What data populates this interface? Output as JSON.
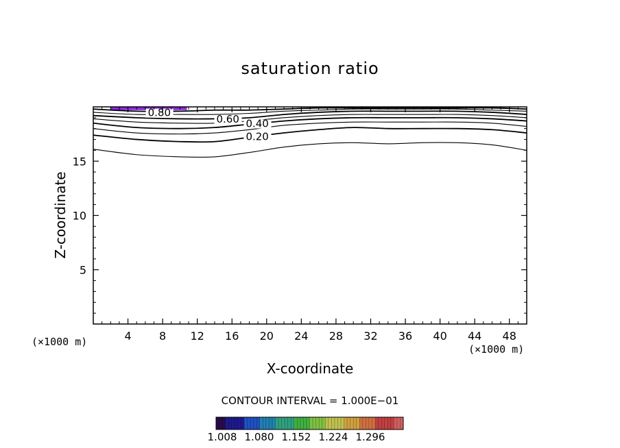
{
  "chart_data": {
    "type": "contour",
    "title": "saturation ratio",
    "xlabel": "X-coordinate",
    "ylabel": "Z-coordinate",
    "x_unit_left": "(×1000 m)",
    "x_unit_right": "(×1000 m)",
    "xlim": [
      0,
      50
    ],
    "ylim": [
      0,
      20
    ],
    "x_ticks": [
      "4",
      "8",
      "12",
      "16",
      "20",
      "24",
      "28",
      "32",
      "36",
      "40",
      "44",
      "48"
    ],
    "x_tick_values": [
      4,
      8,
      12,
      16,
      20,
      24,
      28,
      32,
      36,
      40,
      44,
      48
    ],
    "y_ticks": [
      "5",
      "10",
      "15"
    ],
    "y_tick_values": [
      5,
      10,
      15
    ],
    "contour_interval_text": "CONTOUR INTERVAL = 1.000E−01",
    "contours": [
      {
        "level": 0.1,
        "label": "",
        "points": [
          [
            0,
            16.1
          ],
          [
            5,
            15.6
          ],
          [
            10,
            15.4
          ],
          [
            14,
            15.4
          ],
          [
            18,
            15.8
          ],
          [
            22,
            16.3
          ],
          [
            26,
            16.6
          ],
          [
            30,
            16.7
          ],
          [
            34,
            16.6
          ],
          [
            38,
            16.7
          ],
          [
            42,
            16.7
          ],
          [
            46,
            16.5
          ],
          [
            50,
            16.0
          ]
        ]
      },
      {
        "level": 0.2,
        "label": "0.20",
        "points": [
          [
            0,
            17.4
          ],
          [
            5,
            17.0
          ],
          [
            10,
            16.8
          ],
          [
            14,
            16.8
          ],
          [
            18,
            17.2
          ],
          [
            22,
            17.6
          ],
          [
            26,
            17.9
          ],
          [
            30,
            18.1
          ],
          [
            34,
            18.0
          ],
          [
            38,
            18.0
          ],
          [
            42,
            18.0
          ],
          [
            46,
            17.9
          ],
          [
            50,
            17.6
          ]
        ]
      },
      {
        "level": 0.3,
        "label": "",
        "points": [
          [
            0,
            18.0
          ],
          [
            5,
            17.6
          ],
          [
            10,
            17.5
          ],
          [
            14,
            17.6
          ],
          [
            18,
            17.9
          ],
          [
            22,
            18.3
          ],
          [
            26,
            18.5
          ],
          [
            30,
            18.6
          ],
          [
            34,
            18.6
          ],
          [
            38,
            18.6
          ],
          [
            42,
            18.6
          ],
          [
            46,
            18.5
          ],
          [
            50,
            18.2
          ]
        ]
      },
      {
        "level": 0.4,
        "label": "0.40",
        "points": [
          [
            0,
            18.5
          ],
          [
            5,
            18.1
          ],
          [
            10,
            18.0
          ],
          [
            14,
            18.1
          ],
          [
            18,
            18.4
          ],
          [
            22,
            18.7
          ],
          [
            26,
            18.9
          ],
          [
            30,
            19.0
          ],
          [
            34,
            19.0
          ],
          [
            38,
            19.0
          ],
          [
            42,
            19.0
          ],
          [
            46,
            18.9
          ],
          [
            50,
            18.7
          ]
        ]
      },
      {
        "level": 0.5,
        "label": "",
        "points": [
          [
            0,
            18.9
          ],
          [
            5,
            18.6
          ],
          [
            10,
            18.5
          ],
          [
            14,
            18.5
          ],
          [
            18,
            18.7
          ],
          [
            22,
            19.0
          ],
          [
            26,
            19.2
          ],
          [
            30,
            19.3
          ],
          [
            34,
            19.3
          ],
          [
            38,
            19.3
          ],
          [
            42,
            19.3
          ],
          [
            46,
            19.2
          ],
          [
            50,
            19.0
          ]
        ]
      },
      {
        "level": 0.6,
        "label": "0.60",
        "points": [
          [
            0,
            19.2
          ],
          [
            5,
            19.0
          ],
          [
            10,
            18.9
          ],
          [
            14,
            18.9
          ],
          [
            18,
            19.0
          ],
          [
            22,
            19.3
          ],
          [
            26,
            19.5
          ],
          [
            30,
            19.6
          ],
          [
            34,
            19.6
          ],
          [
            38,
            19.6
          ],
          [
            42,
            19.6
          ],
          [
            46,
            19.5
          ],
          [
            50,
            19.3
          ]
        ]
      },
      {
        "level": 0.7,
        "label": "",
        "points": [
          [
            0,
            19.5
          ],
          [
            5,
            19.3
          ],
          [
            10,
            19.3
          ],
          [
            14,
            19.3
          ],
          [
            18,
            19.4
          ],
          [
            22,
            19.6
          ],
          [
            26,
            19.7
          ],
          [
            30,
            19.8
          ],
          [
            34,
            19.8
          ],
          [
            38,
            19.8
          ],
          [
            42,
            19.8
          ],
          [
            46,
            19.7
          ],
          [
            50,
            19.6
          ]
        ]
      },
      {
        "level": 0.8,
        "label": "0.80",
        "points": [
          [
            0,
            19.8
          ],
          [
            5,
            19.6
          ],
          [
            10,
            19.6
          ],
          [
            14,
            19.7
          ],
          [
            18,
            19.7
          ],
          [
            22,
            19.8
          ],
          [
            26,
            19.9
          ],
          [
            30,
            19.9
          ],
          [
            34,
            19.9
          ],
          [
            38,
            19.9
          ],
          [
            42,
            19.9
          ],
          [
            46,
            19.9
          ],
          [
            50,
            19.8
          ]
        ]
      }
    ],
    "contour_labels": [
      {
        "text": "0.80",
        "x": 6.3,
        "y": 19.2
      },
      {
        "text": "0.60",
        "x": 14.2,
        "y": 18.6
      },
      {
        "text": "0.40",
        "x": 17.6,
        "y": 18.2
      },
      {
        "text": "0.20",
        "x": 17.6,
        "y": 17.0
      }
    ],
    "shaded_region": {
      "x0": 2.0,
      "x1": 10.8,
      "y0": 19.7,
      "y1": 20.0,
      "color": "#8a2be2"
    },
    "colorbar": {
      "ticks": [
        "1.008",
        "1.080",
        "1.152",
        "1.224",
        "1.296"
      ],
      "colors": [
        "#2a0a4a",
        "#1d1a8a",
        "#2050c0",
        "#2080b0",
        "#30a080",
        "#40b040",
        "#80c040",
        "#c0c050",
        "#d0a040",
        "#d07040",
        "#c04040",
        "#d06060"
      ]
    }
  }
}
